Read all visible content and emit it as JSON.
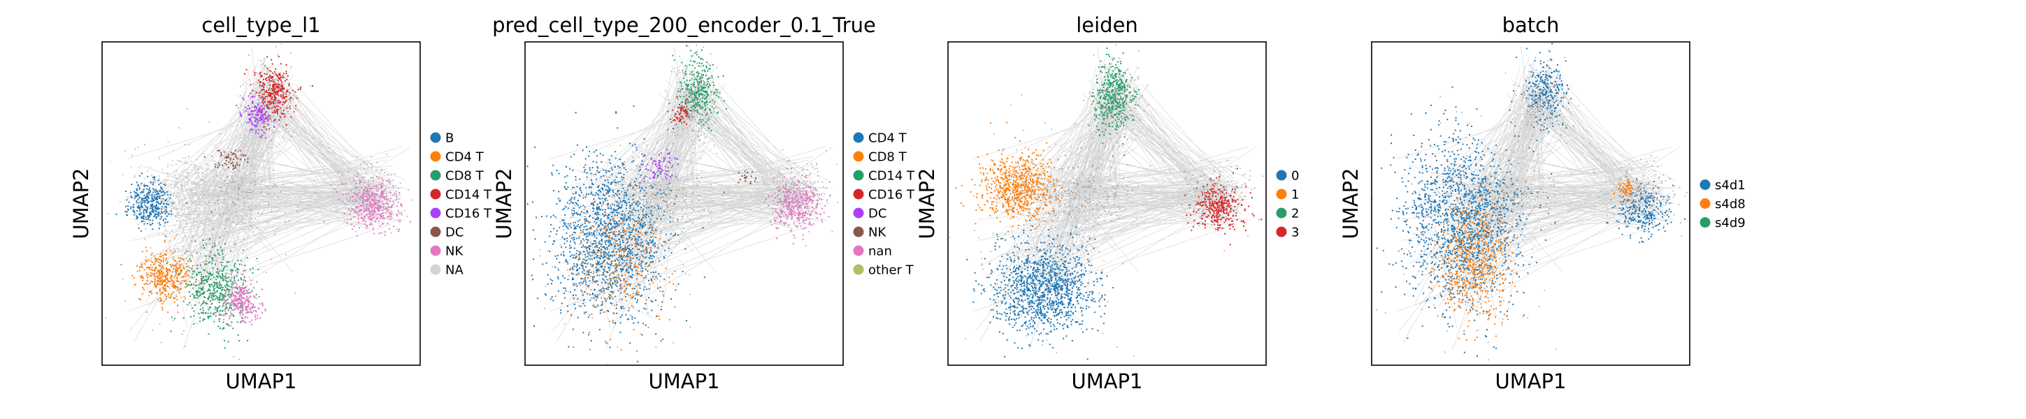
{
  "chart_data": [
    {
      "type": "scatter",
      "title": "cell_type_l1",
      "xlabel": "UMAP1",
      "ylabel": "UMAP2",
      "legend_position": "right",
      "grid": false,
      "legend": [
        {
          "label": "B",
          "color": "#1f77b4"
        },
        {
          "label": "CD4 T",
          "color": "#ff7f0e"
        },
        {
          "label": "CD8 T",
          "color": "#279e68"
        },
        {
          "label": "CD14 T",
          "color": "#d62728"
        },
        {
          "label": "CD16 T",
          "color": "#aa40fc"
        },
        {
          "label": "DC",
          "color": "#8c564b"
        },
        {
          "label": "NK",
          "color": "#e377c2"
        },
        {
          "label": "NA",
          "color": "#d3d3d3"
        }
      ]
    },
    {
      "type": "scatter",
      "title": "pred_cell_type_200_encoder_0.1_True",
      "xlabel": "UMAP1",
      "ylabel": "UMAP2",
      "legend_position": "right",
      "grid": false,
      "legend": [
        {
          "label": "CD4 T",
          "color": "#1f77b4"
        },
        {
          "label": "CD8 T",
          "color": "#ff7f0e"
        },
        {
          "label": "CD14 T",
          "color": "#279e68"
        },
        {
          "label": "CD16 T",
          "color": "#d62728"
        },
        {
          "label": "DC",
          "color": "#aa40fc"
        },
        {
          "label": "NK",
          "color": "#8c564b"
        },
        {
          "label": "nan",
          "color": "#e377c2"
        },
        {
          "label": "other T",
          "color": "#b5bd61"
        }
      ]
    },
    {
      "type": "scatter",
      "title": "leiden",
      "xlabel": "UMAP1",
      "ylabel": "UMAP2",
      "legend_position": "right",
      "grid": false,
      "legend": [
        {
          "label": "0",
          "color": "#1f77b4"
        },
        {
          "label": "1",
          "color": "#ff7f0e"
        },
        {
          "label": "2",
          "color": "#279e68"
        },
        {
          "label": "3",
          "color": "#d62728"
        }
      ]
    },
    {
      "type": "scatter",
      "title": "batch",
      "xlabel": "UMAP1",
      "ylabel": "UMAP2",
      "legend_position": "right",
      "grid": false,
      "legend": [
        {
          "label": "s4d1",
          "color": "#1f77b4"
        },
        {
          "label": "s4d8",
          "color": "#ff7f0e"
        },
        {
          "label": "s4d9",
          "color": "#279e68"
        }
      ]
    }
  ],
  "style": {
    "edge_color": "#808080",
    "background_point_color": "#808080"
  }
}
